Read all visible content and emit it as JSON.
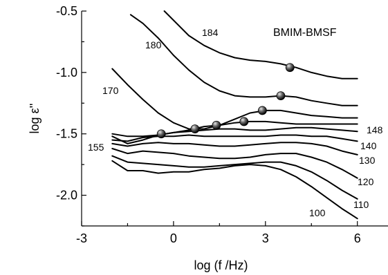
{
  "chart_data": {
    "type": "line",
    "title": "",
    "xlabel": "log (f /Hz)",
    "ylabel": "log ε''",
    "xlim": [
      -3,
      7
    ],
    "ylim": [
      -2.25,
      -0.5
    ],
    "xticks": [
      -3,
      0,
      3,
      6
    ],
    "xtick_labels": [
      "-3",
      "0",
      "3",
      "6"
    ],
    "yticks": [
      -2.0,
      -1.5,
      -1.0,
      -0.5
    ],
    "ytick_labels": [
      "-2.0",
      "-1.5",
      "-1.0",
      "-0.5"
    ],
    "grid": false,
    "annotation": "BMIM-BMSF",
    "series": [
      {
        "label": "184",
        "x": [
          -0.3,
          0.5,
          1.0,
          1.5,
          2.0,
          2.5,
          3.0,
          3.5,
          4.0,
          4.5,
          5.0,
          5.5,
          6.0
        ],
        "y": [
          -0.5,
          -0.7,
          -0.78,
          -0.84,
          -0.88,
          -0.9,
          -0.91,
          -0.93,
          -0.96,
          -1.0,
          -1.03,
          -1.05,
          -1.05
        ]
      },
      {
        "label": "180",
        "x": [
          -1.4,
          -1.0,
          -0.5,
          0.0,
          0.5,
          1.0,
          1.5,
          2.0,
          2.5,
          3.0,
          3.5,
          4.0,
          4.5,
          5.0,
          5.5,
          6.0
        ],
        "y": [
          -0.53,
          -0.6,
          -0.72,
          -0.86,
          -0.98,
          -1.08,
          -1.15,
          -1.19,
          -1.2,
          -1.2,
          -1.19,
          -1.2,
          -1.23,
          -1.25,
          -1.27,
          -1.27
        ]
      },
      {
        "label": "170",
        "x": [
          -2.0,
          -1.5,
          -1.0,
          -0.5,
          0.0,
          0.5,
          1.0,
          1.5,
          2.0,
          2.5,
          3.0,
          3.5,
          4.0,
          4.5,
          5.0,
          5.5,
          6.0
        ],
        "y": [
          -0.97,
          -1.1,
          -1.22,
          -1.33,
          -1.41,
          -1.46,
          -1.46,
          -1.43,
          -1.38,
          -1.33,
          -1.31,
          -1.31,
          -1.33,
          -1.35,
          -1.36,
          -1.37,
          -1.37
        ]
      },
      {
        "label": "155",
        "x": [
          -2.0,
          -1.5,
          -1.0,
          -0.5,
          0.0,
          0.5,
          1.0,
          1.5,
          2.0,
          2.5,
          3.0,
          3.5,
          4.0,
          4.5,
          5.0,
          5.5,
          6.0
        ],
        "y": [
          -1.52,
          -1.58,
          -1.55,
          -1.51,
          -1.49,
          -1.47,
          -1.44,
          -1.43,
          -1.41,
          -1.4,
          -1.4,
          -1.41,
          -1.42,
          -1.42,
          -1.42,
          -1.42,
          -1.42
        ]
      },
      {
        "label": "148",
        "x": [
          -2.0,
          -1.5,
          -1.0,
          -0.5,
          0.0,
          0.5,
          1.0,
          1.5,
          2.0,
          2.5,
          3.0,
          3.5,
          4.0,
          4.5,
          5.0,
          5.5,
          6.0
        ],
        "y": [
          -1.5,
          -1.52,
          -1.52,
          -1.51,
          -1.49,
          -1.48,
          -1.47,
          -1.46,
          -1.46,
          -1.47,
          -1.47,
          -1.46,
          -1.45,
          -1.45,
          -1.46,
          -1.47,
          -1.48
        ]
      },
      {
        "label": "140",
        "x": [
          -2.0,
          -1.5,
          -1.0,
          -0.5,
          0.0,
          0.5,
          1.0,
          1.5,
          2.0,
          2.5,
          3.0,
          3.5,
          4.0,
          4.5,
          5.0,
          5.5,
          6.0
        ],
        "y": [
          -1.55,
          -1.56,
          -1.53,
          -1.52,
          -1.52,
          -1.51,
          -1.52,
          -1.52,
          -1.52,
          -1.52,
          -1.52,
          -1.51,
          -1.51,
          -1.52,
          -1.52,
          -1.54,
          -1.56
        ]
      },
      {
        "label": "130",
        "x": [
          -2.0,
          -1.5,
          -1.0,
          -0.5,
          0.0,
          0.5,
          1.0,
          1.5,
          2.0,
          2.5,
          3.0,
          3.5,
          4.0,
          4.5,
          5.0,
          5.5,
          6.0
        ],
        "y": [
          -1.58,
          -1.6,
          -1.58,
          -1.57,
          -1.58,
          -1.58,
          -1.59,
          -1.6,
          -1.6,
          -1.59,
          -1.58,
          -1.57,
          -1.57,
          -1.58,
          -1.6,
          -1.64,
          -1.67
        ]
      },
      {
        "label": "120",
        "x": [
          -2.0,
          -1.5,
          -1.0,
          -0.5,
          0.0,
          0.5,
          1.0,
          1.5,
          2.0,
          2.5,
          3.0,
          3.5,
          4.0,
          4.5,
          5.0,
          5.5,
          6.0
        ],
        "y": [
          -1.62,
          -1.66,
          -1.64,
          -1.65,
          -1.66,
          -1.68,
          -1.69,
          -1.7,
          -1.7,
          -1.69,
          -1.67,
          -1.66,
          -1.66,
          -1.69,
          -1.73,
          -1.79,
          -1.86
        ]
      },
      {
        "label": "110",
        "x": [
          -2.0,
          -1.5,
          -1.0,
          -0.5,
          0.0,
          0.5,
          1.0,
          1.5,
          2.0,
          2.5,
          3.0,
          3.5,
          4.0,
          4.5,
          5.0,
          5.5,
          6.0
        ],
        "y": [
          -1.68,
          -1.73,
          -1.74,
          -1.75,
          -1.76,
          -1.77,
          -1.77,
          -1.76,
          -1.75,
          -1.74,
          -1.73,
          -1.73,
          -1.76,
          -1.81,
          -1.88,
          -1.96,
          -2.03
        ]
      },
      {
        "label": "100",
        "x": [
          -2.0,
          -1.5,
          -1.0,
          -0.5,
          0.0,
          0.5,
          1.0,
          1.5,
          2.0,
          2.5,
          3.0,
          3.5,
          4.0,
          4.5,
          5.0,
          5.5,
          6.0
        ],
        "y": [
          -1.72,
          -1.8,
          -1.8,
          -1.82,
          -1.81,
          -1.81,
          -1.79,
          -1.78,
          -1.76,
          -1.75,
          -1.76,
          -1.79,
          -1.85,
          -1.93,
          -2.02,
          -2.11,
          -2.19
        ]
      }
    ],
    "markers": [
      {
        "x": 3.8,
        "y": -0.96
      },
      {
        "x": 3.5,
        "y": -1.19
      },
      {
        "x": 2.9,
        "y": -1.31
      },
      {
        "x": 2.3,
        "y": -1.4
      },
      {
        "x": 1.4,
        "y": -1.43
      },
      {
        "x": 0.7,
        "y": -1.46
      },
      {
        "x": -0.4,
        "y": -1.5
      }
    ]
  }
}
